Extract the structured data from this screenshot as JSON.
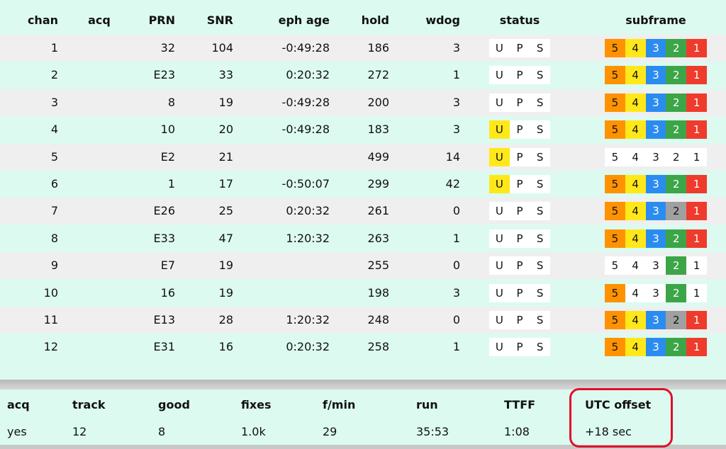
{
  "columns": [
    "chan",
    "acq",
    "PRN",
    "SNR",
    "eph age",
    "hold",
    "wdog",
    "status",
    "subframe"
  ],
  "status_letters": [
    "U",
    "P",
    "S"
  ],
  "subframe_labels": [
    "5",
    "4",
    "3",
    "2",
    "1"
  ],
  "colors": {
    "o": "#ff9200",
    "y": "#ffe81a",
    "b": "#2b8cf0",
    "g": "#3ca548",
    "r": "#ef3b2c",
    "x": "#a0a0a0",
    "w": "#ffffff",
    "status_highlight": "#ffe81a"
  },
  "rows": [
    {
      "chan": "1",
      "acq": "",
      "prn": "32",
      "snr": "104",
      "eph": "-0:49:28",
      "hold": "186",
      "wdog": "3",
      "u": false,
      "sub": "oybgr"
    },
    {
      "chan": "2",
      "acq": "",
      "prn": "E23",
      "snr": "33",
      "eph": "0:20:32",
      "hold": "272",
      "wdog": "1",
      "u": false,
      "sub": "oybgr"
    },
    {
      "chan": "3",
      "acq": "",
      "prn": "8",
      "snr": "19",
      "eph": "-0:49:28",
      "hold": "200",
      "wdog": "3",
      "u": false,
      "sub": "oybgr"
    },
    {
      "chan": "4",
      "acq": "",
      "prn": "10",
      "snr": "20",
      "eph": "-0:49:28",
      "hold": "183",
      "wdog": "3",
      "u": true,
      "sub": "oybgr"
    },
    {
      "chan": "5",
      "acq": "",
      "prn": "E2",
      "snr": "21",
      "eph": "",
      "hold": "499",
      "wdog": "14",
      "u": true,
      "sub": "wwwww"
    },
    {
      "chan": "6",
      "acq": "",
      "prn": "1",
      "snr": "17",
      "eph": "-0:50:07",
      "hold": "299",
      "wdog": "42",
      "u": true,
      "sub": "oybgr"
    },
    {
      "chan": "7",
      "acq": "",
      "prn": "E26",
      "snr": "25",
      "eph": "0:20:32",
      "hold": "261",
      "wdog": "0",
      "u": false,
      "sub": "oybxr"
    },
    {
      "chan": "8",
      "acq": "",
      "prn": "E33",
      "snr": "47",
      "eph": "1:20:32",
      "hold": "263",
      "wdog": "1",
      "u": false,
      "sub": "oybgr"
    },
    {
      "chan": "9",
      "acq": "",
      "prn": "E7",
      "snr": "19",
      "eph": "",
      "hold": "255",
      "wdog": "0",
      "u": false,
      "sub": "wwwgw"
    },
    {
      "chan": "10",
      "acq": "",
      "prn": "16",
      "snr": "19",
      "eph": "",
      "hold": "198",
      "wdog": "3",
      "u": false,
      "sub": "owwgw"
    },
    {
      "chan": "11",
      "acq": "",
      "prn": "E13",
      "snr": "28",
      "eph": "1:20:32",
      "hold": "248",
      "wdog": "0",
      "u": false,
      "sub": "oybxr"
    },
    {
      "chan": "12",
      "acq": "",
      "prn": "E31",
      "snr": "16",
      "eph": "0:20:32",
      "hold": "258",
      "wdog": "1",
      "u": false,
      "sub": "oybgr"
    }
  ],
  "summary": {
    "labels": [
      "acq",
      "track",
      "good",
      "fixes",
      "f/min",
      "run",
      "TTFF",
      "UTC offset"
    ],
    "values": [
      "yes",
      "12",
      "8",
      "1.0k",
      "29",
      "35:53",
      "1:08",
      "+18 sec"
    ],
    "highlighted": "UTC offset"
  }
}
